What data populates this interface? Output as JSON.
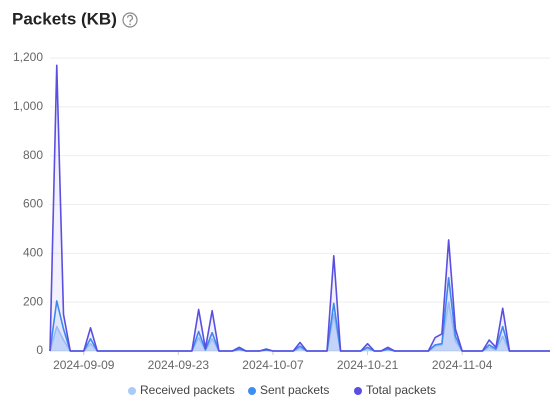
{
  "chart_data": {
    "type": "line",
    "title": "Packets (KB)",
    "x": [
      "2024-09-04",
      "2024-09-05",
      "2024-09-06",
      "2024-09-07",
      "2024-09-08",
      "2024-09-09",
      "2024-09-10",
      "2024-09-11",
      "2024-09-12",
      "2024-09-13",
      "2024-09-14",
      "2024-09-15",
      "2024-09-16",
      "2024-09-17",
      "2024-09-18",
      "2024-09-19",
      "2024-09-20",
      "2024-09-21",
      "2024-09-22",
      "2024-09-23",
      "2024-09-24",
      "2024-09-25",
      "2024-09-26",
      "2024-09-27",
      "2024-09-28",
      "2024-09-29",
      "2024-09-30",
      "2024-10-01",
      "2024-10-02",
      "2024-10-03",
      "2024-10-04",
      "2024-10-05",
      "2024-10-06",
      "2024-10-07",
      "2024-10-08",
      "2024-10-09",
      "2024-10-10",
      "2024-10-11",
      "2024-10-12",
      "2024-10-13",
      "2024-10-14",
      "2024-10-15",
      "2024-10-16",
      "2024-10-17",
      "2024-10-18",
      "2024-10-19",
      "2024-10-20",
      "2024-10-21",
      "2024-10-22",
      "2024-10-23",
      "2024-10-24",
      "2024-10-25",
      "2024-10-26",
      "2024-10-27",
      "2024-10-28",
      "2024-10-29",
      "2024-10-30",
      "2024-10-31",
      "2024-11-01",
      "2024-11-02",
      "2024-11-03",
      "2024-11-04",
      "2024-11-05",
      "2024-11-06",
      "2024-11-07",
      "2024-11-08",
      "2024-11-09",
      "2024-11-10",
      "2024-11-11",
      "2024-11-12",
      "2024-11-13",
      "2024-11-14",
      "2024-11-15",
      "2024-11-16",
      "2024-11-17"
    ],
    "xticks": [
      "2024-09-09",
      "2024-09-23",
      "2024-10-07",
      "2024-10-21",
      "2024-11-04"
    ],
    "series": [
      {
        "name": "Received packets",
        "color": "#a9cbf7",
        "values": [
          0,
          100,
          45,
          0,
          0,
          0,
          30,
          0,
          0,
          0,
          0,
          0,
          0,
          0,
          0,
          0,
          0,
          0,
          0,
          0,
          0,
          0,
          55,
          3,
          50,
          0,
          0,
          0,
          5,
          0,
          0,
          0,
          2,
          0,
          0,
          0,
          0,
          12,
          0,
          0,
          0,
          0,
          150,
          0,
          0,
          0,
          0,
          10,
          0,
          0,
          5,
          0,
          0,
          0,
          0,
          0,
          0,
          20,
          25,
          200,
          40,
          0,
          0,
          0,
          0,
          15,
          5,
          60,
          0,
          0,
          0,
          0,
          0,
          0,
          0
        ]
      },
      {
        "name": "Sent packets",
        "color": "#3d8ef0",
        "values": [
          0,
          205,
          90,
          0,
          0,
          0,
          50,
          0,
          0,
          0,
          0,
          0,
          0,
          0,
          0,
          0,
          0,
          0,
          0,
          0,
          0,
          0,
          80,
          5,
          75,
          0,
          0,
          0,
          8,
          0,
          0,
          0,
          4,
          0,
          0,
          0,
          0,
          20,
          0,
          0,
          0,
          0,
          195,
          0,
          0,
          0,
          0,
          15,
          0,
          0,
          8,
          0,
          0,
          0,
          0,
          0,
          0,
          25,
          30,
          300,
          60,
          0,
          0,
          0,
          0,
          25,
          8,
          100,
          0,
          0,
          0,
          0,
          0,
          0,
          0
        ]
      },
      {
        "name": "Total packets",
        "color": "#5a4fe0",
        "values": [
          0,
          1170,
          150,
          0,
          0,
          0,
          95,
          0,
          0,
          0,
          0,
          0,
          0,
          0,
          0,
          0,
          0,
          0,
          0,
          0,
          0,
          0,
          170,
          10,
          165,
          0,
          0,
          0,
          15,
          0,
          0,
          0,
          8,
          0,
          0,
          0,
          0,
          35,
          0,
          0,
          0,
          0,
          390,
          0,
          0,
          0,
          0,
          30,
          0,
          0,
          15,
          0,
          0,
          0,
          0,
          0,
          0,
          55,
          70,
          455,
          90,
          0,
          0,
          0,
          0,
          45,
          15,
          175,
          0,
          0,
          0,
          0,
          0,
          0,
          0
        ]
      }
    ],
    "ylim": [
      0,
      1200
    ],
    "yticks": [
      0,
      200,
      400,
      600,
      800,
      {
        "value": 1000,
        "label": "1,000"
      },
      {
        "value": 1200,
        "label": "1,200"
      }
    ],
    "grid": true
  }
}
